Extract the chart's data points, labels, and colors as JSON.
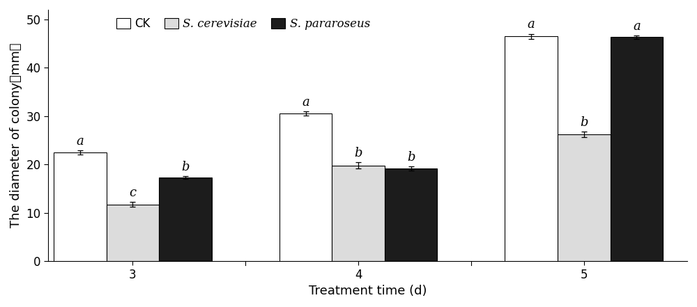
{
  "groups": [
    "3",
    "4",
    "5"
  ],
  "series": {
    "CK": {
      "values": [
        22.5,
        30.5,
        46.5
      ],
      "errors": [
        0.4,
        0.4,
        0.5
      ],
      "color": "#FFFFFF",
      "edgecolor": "#000000",
      "labels": [
        "a",
        "a",
        "a"
      ]
    },
    "S. cerevisiae": {
      "values": [
        11.7,
        19.8,
        26.2
      ],
      "errors": [
        0.5,
        0.6,
        0.6
      ],
      "color": "#DCDCDC",
      "edgecolor": "#000000",
      "labels": [
        "c",
        "b",
        "b"
      ]
    },
    "S. pararoseus": {
      "values": [
        17.3,
        19.2,
        46.3
      ],
      "errors": [
        0.3,
        0.4,
        0.4
      ],
      "color": "#1C1C1C",
      "edgecolor": "#000000",
      "labels": [
        "b",
        "b",
        "a"
      ]
    }
  },
  "ylabel": "The diameter of colony（mm）",
  "xlabel": "Treatment time (d)",
  "ylim": [
    0,
    52
  ],
  "yticks": [
    0,
    10,
    20,
    30,
    40,
    50
  ],
  "bar_width": 0.28,
  "legend_labels": [
    "CK",
    "S. cerevisiae",
    "S. pararoseus"
  ],
  "legend_italic": [
    false,
    true,
    true
  ],
  "annotation_fontsize": 13,
  "label_fontsize": 13,
  "tick_fontsize": 12
}
